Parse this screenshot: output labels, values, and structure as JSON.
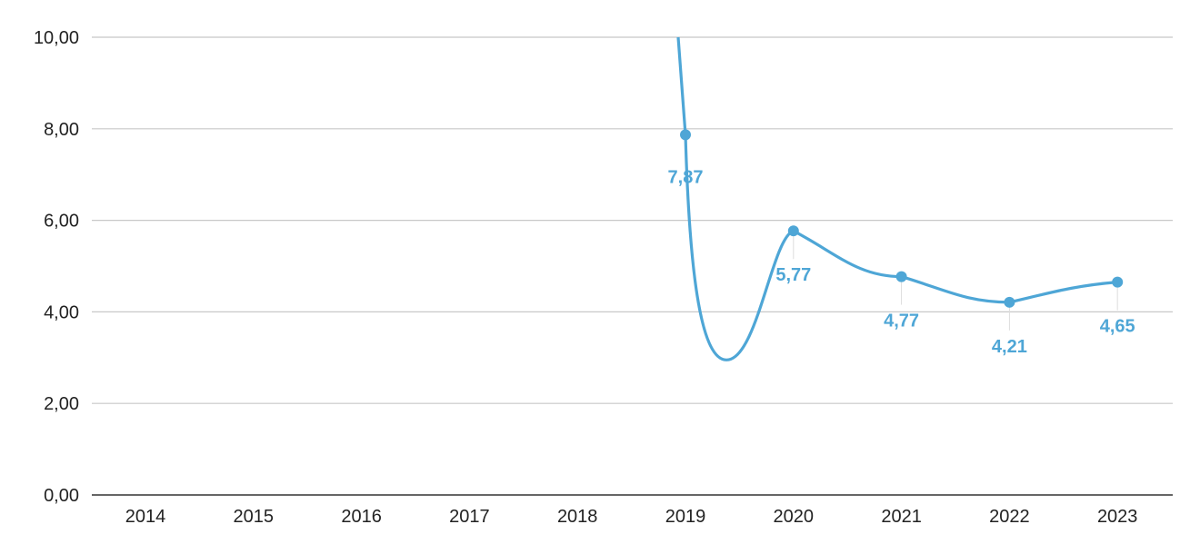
{
  "chart_data": {
    "type": "line",
    "x": [
      "2014",
      "2015",
      "2016",
      "2017",
      "2018",
      "2019",
      "2020",
      "2021",
      "2022",
      "2023"
    ],
    "series": [
      {
        "values": [
          null,
          null,
          null,
          null,
          null,
          7.87,
          5.77,
          4.77,
          4.21,
          4.65
        ],
        "labels": [
          null,
          null,
          null,
          null,
          null,
          "7,87",
          "5,77",
          "4,77",
          "4,21",
          "4,65"
        ],
        "color": "#4ea6d6"
      }
    ],
    "ylim": [
      0,
      10
    ],
    "yticks": [
      0,
      2,
      4,
      6,
      8,
      10
    ],
    "ytick_labels": [
      "0,00",
      "2,00",
      "4,00",
      "6,00",
      "8,00",
      "10,00"
    ],
    "grid": true,
    "title": "",
    "xlabel": "",
    "ylabel": "",
    "colors": {
      "line": "#4ea6d6",
      "grid": "#c8c8c8",
      "axis": "#333333",
      "text": "#222222"
    }
  }
}
